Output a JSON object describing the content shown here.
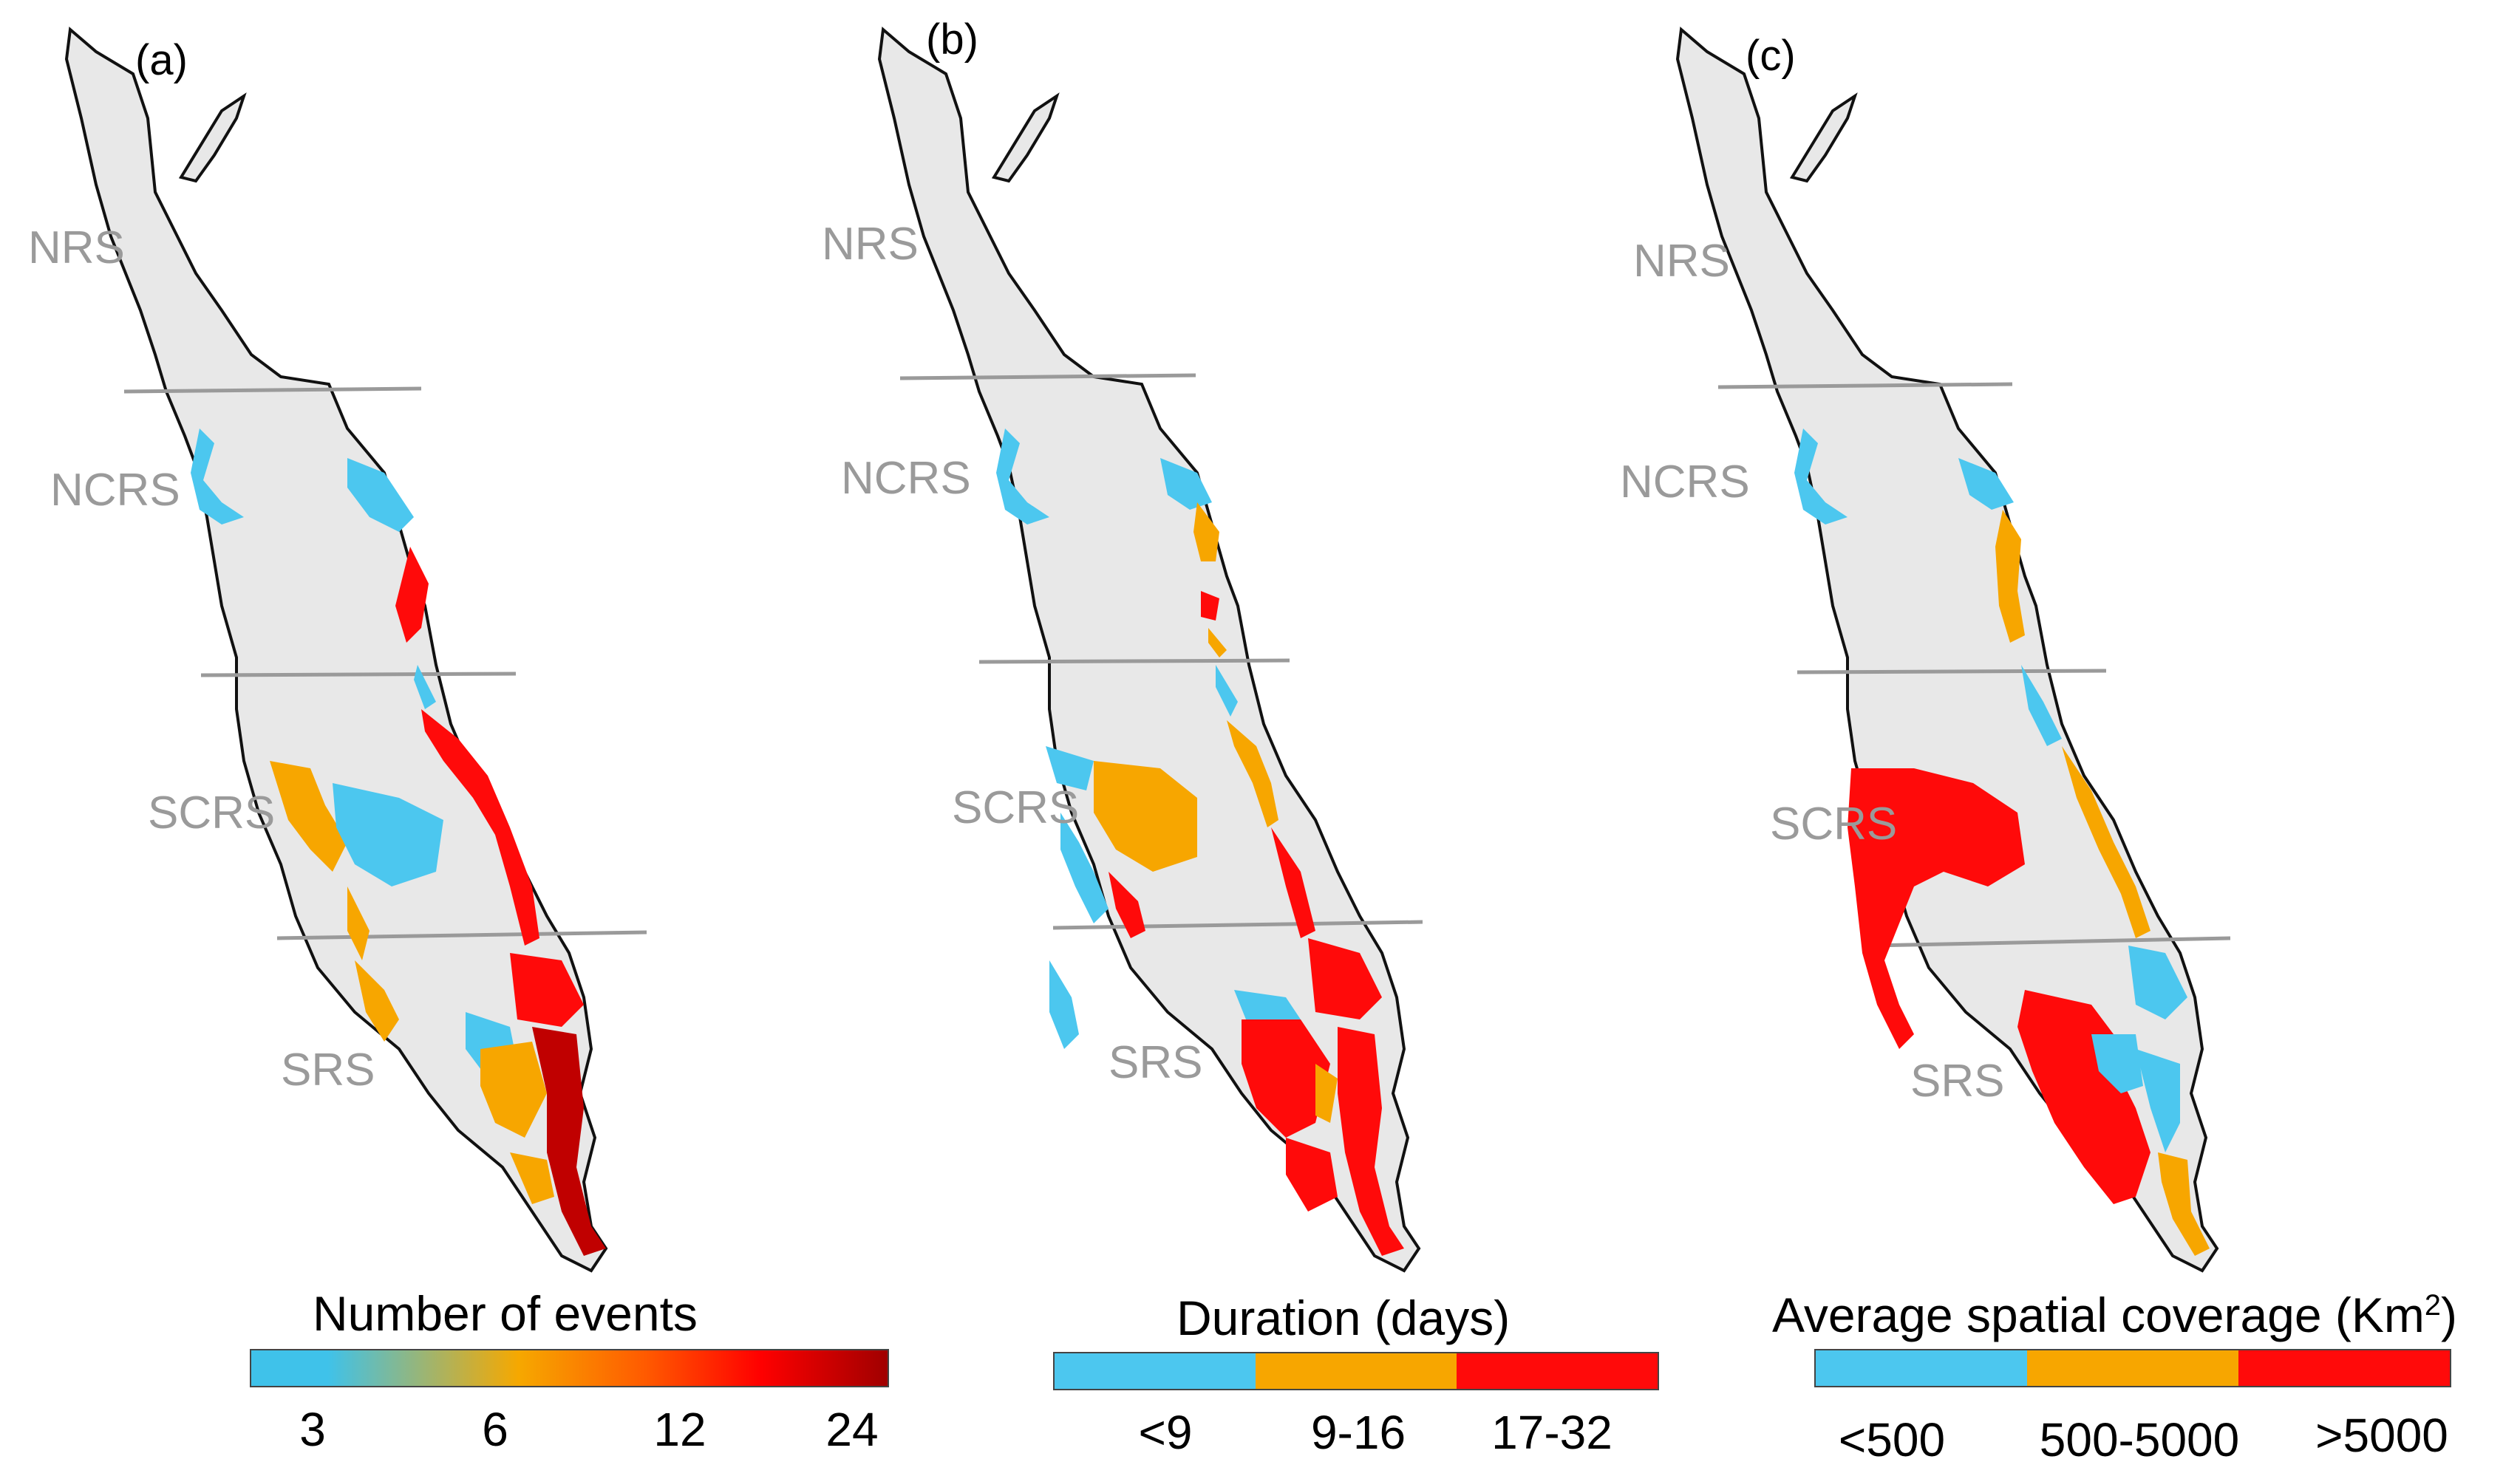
{
  "colors": {
    "land": "#e8e8e8",
    "coast": "#111111",
    "divider": "#9a9a9a",
    "blue": "#4cc7ef",
    "orange": "#f7a600",
    "red": "#ff0a0a",
    "darkred": "#c00000",
    "region_text": "#9a9a9a"
  },
  "panels": [
    {
      "label": "(a)",
      "regions": [
        "NRS",
        "NCRS",
        "SCRS",
        "SRS"
      ],
      "legend": {
        "title": "Number of events",
        "type": "continuous",
        "ticks": [
          "3",
          "6",
          "12",
          "24"
        ]
      }
    },
    {
      "label": "(b)",
      "regions": [
        "NRS",
        "NCRS",
        "SCRS",
        "SRS"
      ],
      "legend": {
        "title": "Duration (days)",
        "type": "categorical",
        "ticks": [
          "<9",
          "9-16",
          "17-32"
        ]
      }
    },
    {
      "label": "(c)",
      "regions": [
        "NRS",
        "NCRS",
        "SCRS",
        "SRS"
      ],
      "legend": {
        "title": "Average spatial coverage (Km",
        "title_sup": "2",
        "title_end": ")",
        "type": "categorical",
        "ticks": [
          "<500",
          "500-5000",
          ">5000"
        ]
      }
    }
  ]
}
